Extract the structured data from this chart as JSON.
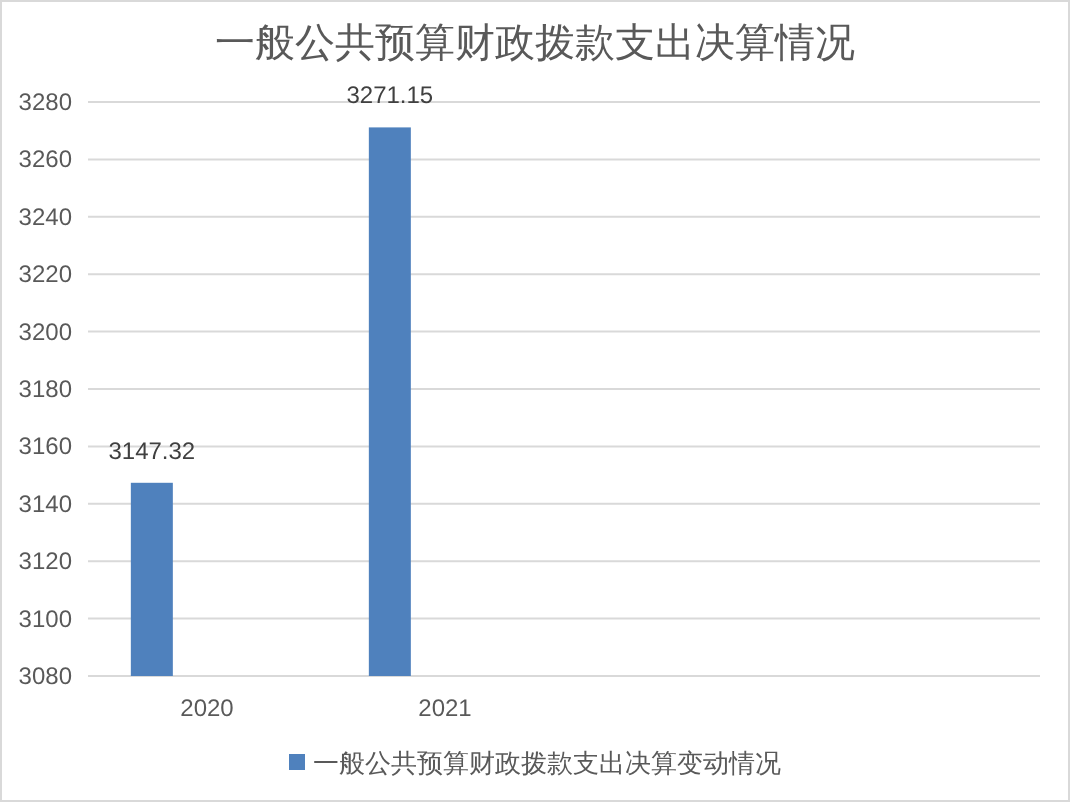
{
  "chart_data": {
    "type": "bar",
    "title": "一般公共预算财政拨款支出决算情况",
    "categories": [
      "2020",
      "2021",
      null,
      null
    ],
    "series": [
      {
        "name": "一般公共预算财政拨款支出决算变动情况",
        "color": "#4f81bd",
        "values": [
          3147.32,
          3271.15,
          null,
          null
        ]
      }
    ],
    "ylim": [
      3080,
      3280
    ],
    "yticks": [
      3080,
      3100,
      3120,
      3140,
      3160,
      3180,
      3200,
      3220,
      3240,
      3260,
      3280
    ],
    "grid": "y",
    "legend": "bottom",
    "data_labels": true
  }
}
